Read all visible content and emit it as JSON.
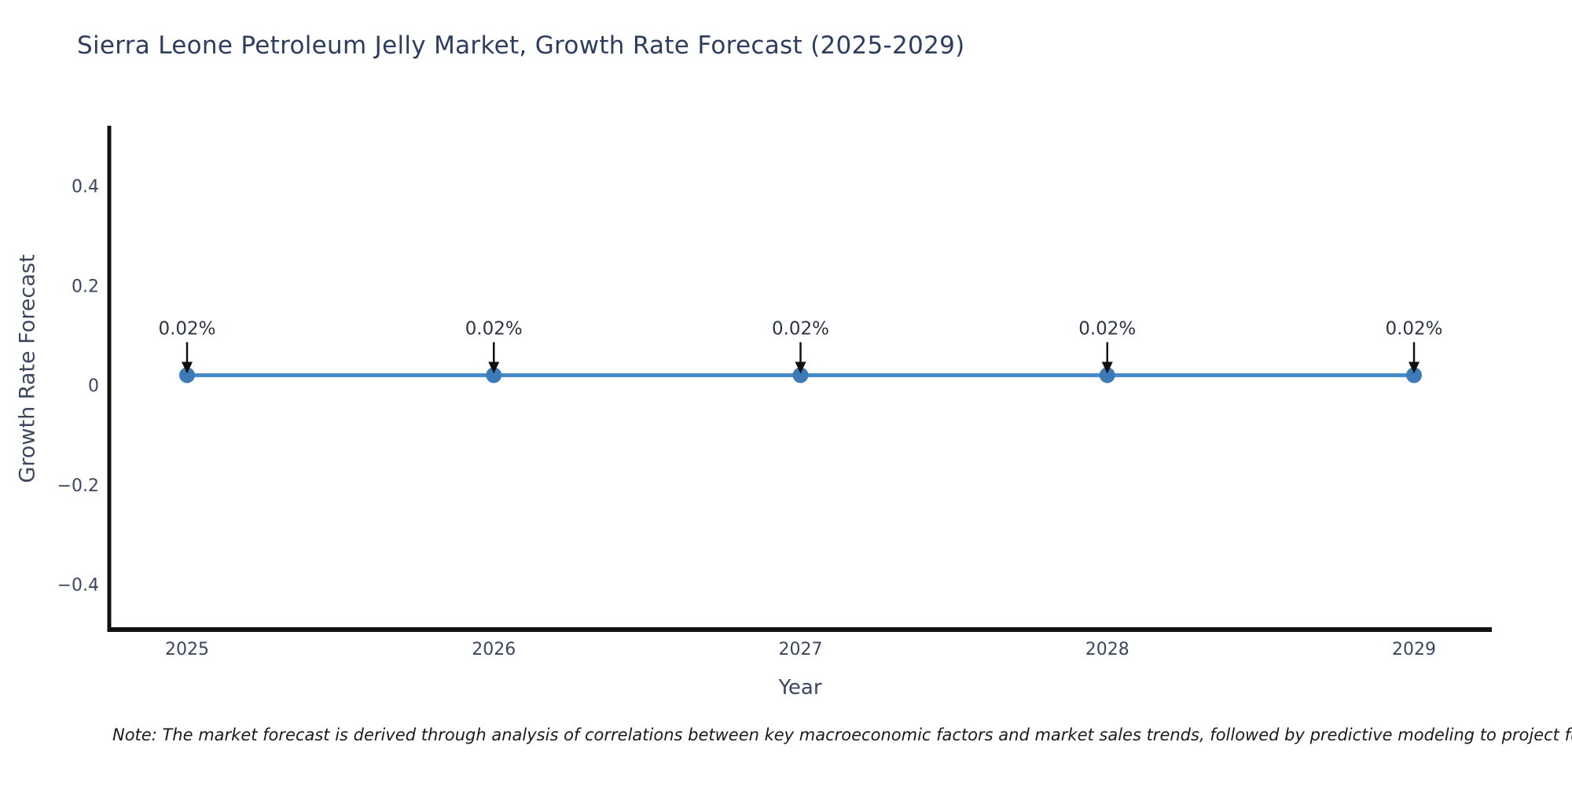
{
  "chart": {
    "title": "Sierra Leone Petroleum Jelly Market, Growth Rate Forecast (2025-2029)",
    "x_axis_label": "Year",
    "y_axis_label": "Growth Rate Forecast",
    "footnote": "Note: The market forecast is derived through analysis of correlations between key macroeconomic factors and market sales trends, followed by predictive modeling to project future sa"
  },
  "chart_data": {
    "type": "line",
    "title": "Sierra Leone Petroleum Jelly Market, Growth Rate Forecast (2025-2029)",
    "xlabel": "Year",
    "ylabel": "Growth Rate Forecast",
    "categories": [
      "2025",
      "2026",
      "2027",
      "2028",
      "2029"
    ],
    "series": [
      {
        "name": "Growth Rate Forecast",
        "values": [
          0.02,
          0.02,
          0.02,
          0.02,
          0.02
        ],
        "point_labels": [
          "0.02%",
          "0.02%",
          "0.02%",
          "0.02%",
          "0.02%"
        ]
      }
    ],
    "ylim": [
      -0.5,
      0.52
    ],
    "yticks": [
      {
        "value": 0.4,
        "label": "0.4"
      },
      {
        "value": 0.2,
        "label": "0.2"
      },
      {
        "value": 0,
        "label": "0"
      },
      {
        "value": -0.2,
        "label": "−0.2"
      },
      {
        "value": -0.4,
        "label": "−0.4"
      }
    ],
    "grid": false,
    "legend_position": "none",
    "annotation_style": "down-arrow",
    "colors": {
      "line": "#4489c8",
      "marker": "#3d7bb8",
      "axis": "#111111",
      "title_text": "#2c3d5e",
      "tick_text": "#3c465e",
      "axis_label_text": "#3c465e",
      "annotation_text": "#2d3442",
      "annotation_arrow": "#111111",
      "footnote_text": "#1a1a1a"
    }
  }
}
